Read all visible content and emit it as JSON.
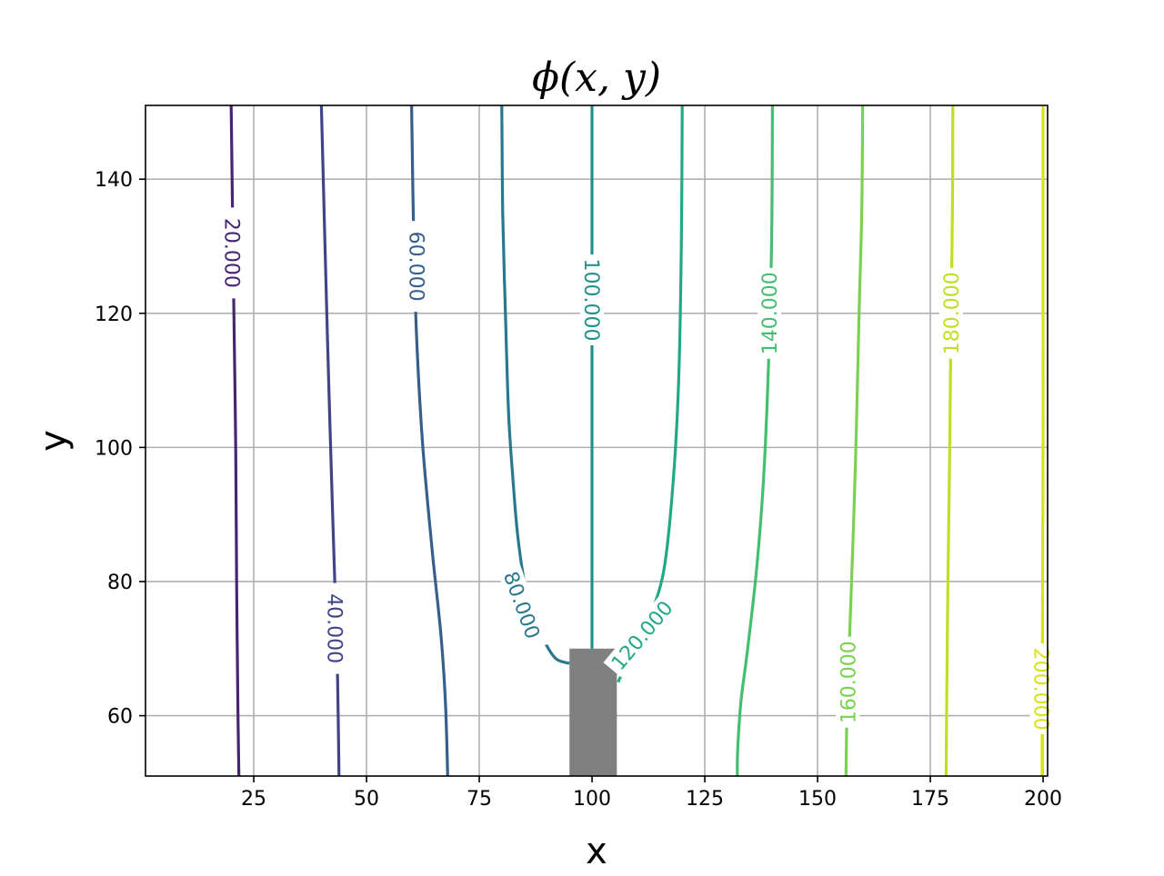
{
  "chart_data": {
    "type": "contour",
    "title": "ϕ(x, y)",
    "xlabel": "x",
    "ylabel": "y",
    "xlim": [
      1,
      201
    ],
    "ylim": [
      51,
      151
    ],
    "xticks": [
      25,
      50,
      75,
      100,
      125,
      150,
      175,
      200
    ],
    "yticks": [
      60,
      80,
      100,
      120,
      140
    ],
    "grid": true,
    "obstacle": {
      "x": [
        95,
        105.5
      ],
      "y": [
        51,
        70
      ],
      "color": "#808080"
    },
    "contours": [
      {
        "level": 20,
        "label": "20.000",
        "color": "#482475",
        "points": [
          [
            20,
            151
          ],
          [
            20.3,
            135
          ],
          [
            20.6,
            120
          ],
          [
            21,
            100
          ],
          [
            21.2,
            80
          ],
          [
            21.5,
            60
          ],
          [
            21.7,
            51
          ]
        ]
      },
      {
        "level": 40,
        "label": "40.000",
        "color": "#414487",
        "points": [
          [
            40,
            151
          ],
          [
            40.8,
            130
          ],
          [
            41.6,
            110
          ],
          [
            42.5,
            90
          ],
          [
            43.2,
            75
          ],
          [
            43.6,
            65
          ],
          [
            43.9,
            51
          ]
        ]
      },
      {
        "level": 60,
        "label": "60.000",
        "color": "#355f8d",
        "points": [
          [
            60,
            151
          ],
          [
            60.5,
            130
          ],
          [
            61.2,
            115
          ],
          [
            62.5,
            100
          ],
          [
            64.5,
            85
          ],
          [
            66.5,
            72
          ],
          [
            67.5,
            62
          ],
          [
            68,
            51
          ]
        ]
      },
      {
        "level": 80,
        "label": "80.000",
        "color": "#2a788e",
        "points": [
          [
            80,
            151
          ],
          [
            80.2,
            135
          ],
          [
            80.8,
            120
          ],
          [
            81.5,
            105
          ],
          [
            82.5,
            95
          ],
          [
            83.5,
            87
          ],
          [
            85,
            80
          ],
          [
            87,
            75
          ],
          [
            89.5,
            71
          ],
          [
            92,
            68.5
          ],
          [
            95,
            67.8
          ]
        ]
      },
      {
        "level": 100,
        "label": "100.000",
        "color": "#21918c",
        "points": [
          [
            100,
            151
          ],
          [
            100,
            120
          ],
          [
            100,
            100
          ],
          [
            100,
            85
          ],
          [
            100,
            70
          ]
        ]
      },
      {
        "level": 120,
        "label": "120.000",
        "color": "#22a884",
        "points": [
          [
            120,
            151
          ],
          [
            119.8,
            130
          ],
          [
            119.2,
            110
          ],
          [
            118,
            95
          ],
          [
            116,
            82
          ],
          [
            113,
            75
          ],
          [
            110,
            70
          ],
          [
            106.5,
            66
          ],
          [
            105.8,
            65
          ]
        ]
      },
      {
        "level": 140,
        "label": "140.000",
        "color": "#44bf70",
        "points": [
          [
            140,
            151
          ],
          [
            139.8,
            130
          ],
          [
            139,
            110
          ],
          [
            138,
            95
          ],
          [
            136.5,
            82
          ],
          [
            134.5,
            70
          ],
          [
            133,
            62
          ],
          [
            132.3,
            55
          ],
          [
            132.2,
            51
          ]
        ]
      },
      {
        "level": 160,
        "label": "160.000",
        "color": "#7ad151",
        "points": [
          [
            160,
            151
          ],
          [
            159.8,
            135
          ],
          [
            159.2,
            120
          ],
          [
            158.5,
            100
          ],
          [
            157.8,
            85
          ],
          [
            157,
            70
          ],
          [
            156.5,
            60
          ],
          [
            156.3,
            51
          ]
        ]
      },
      {
        "level": 180,
        "label": "180.000",
        "color": "#bddf26",
        "points": [
          [
            180,
            151
          ],
          [
            179.9,
            135
          ],
          [
            179.6,
            120
          ],
          [
            179.3,
            100
          ],
          [
            178.9,
            80
          ],
          [
            178.6,
            60
          ],
          [
            178.5,
            51
          ]
        ]
      },
      {
        "level": 200,
        "label": "200.000",
        "color": "#d8e219",
        "points": [
          [
            200,
            151
          ],
          [
            200,
            120
          ],
          [
            200,
            100
          ],
          [
            199.9,
            80
          ],
          [
            199.8,
            60
          ],
          [
            199.8,
            51
          ]
        ]
      }
    ],
    "contour_labels": [
      {
        "text": "20.000",
        "x": 20.3,
        "y": 129,
        "rotation": 90
      },
      {
        "text": "40.000",
        "x": 43,
        "y": 73,
        "rotation": 90
      },
      {
        "text": "60.000",
        "x": 61.2,
        "y": 127,
        "rotation": 90
      },
      {
        "text": "80.000",
        "x": 84.5,
        "y": 76.5,
        "rotation": 70
      },
      {
        "text": "100.000",
        "x": 100,
        "y": 122,
        "rotation": 90
      },
      {
        "text": "120.000",
        "x": 111,
        "y": 72,
        "rotation": -50
      },
      {
        "text": "140.000",
        "x": 139.3,
        "y": 120,
        "rotation": -90
      },
      {
        "text": "160.000",
        "x": 156.7,
        "y": 65,
        "rotation": -90
      },
      {
        "text": "180.000",
        "x": 179.6,
        "y": 120,
        "rotation": -90
      },
      {
        "text": "200.000",
        "x": 199.7,
        "y": 64,
        "rotation": 90
      }
    ]
  }
}
